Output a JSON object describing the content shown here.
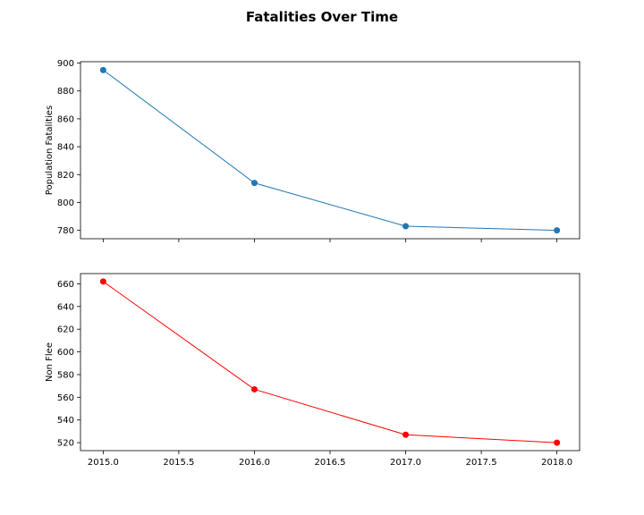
{
  "figure": {
    "title": "Fatalities Over Time"
  },
  "chart_data": [
    {
      "type": "line",
      "title": "",
      "xlabel": "",
      "ylabel": "Population Fatalities",
      "x": [
        2015.0,
        2016.0,
        2017.0,
        2018.0
      ],
      "series": [
        {
          "values": [
            895,
            814,
            783,
            780
          ],
          "color": "#1f77b4",
          "marker": "circle"
        }
      ],
      "xlim": [
        2014.85,
        2018.15
      ],
      "ylim": [
        774,
        901
      ],
      "yticks": [
        780,
        800,
        820,
        840,
        860,
        880,
        900
      ],
      "xticks": [
        2015.0,
        2015.5,
        2016.0,
        2016.5,
        2017.0,
        2017.5,
        2018.0
      ],
      "xtick_labels_visible": false,
      "grid": false
    },
    {
      "type": "line",
      "title": "",
      "xlabel": "",
      "ylabel": "Non Flee",
      "x": [
        2015.0,
        2016.0,
        2017.0,
        2018.0
      ],
      "series": [
        {
          "values": [
            662,
            567,
            527,
            520
          ],
          "color": "#ff0000",
          "marker": "circle"
        }
      ],
      "xlim": [
        2014.85,
        2018.15
      ],
      "ylim": [
        513,
        669
      ],
      "yticks": [
        520,
        540,
        560,
        580,
        600,
        620,
        640,
        660
      ],
      "xticks": [
        2015.0,
        2015.5,
        2016.0,
        2016.5,
        2017.0,
        2017.5,
        2018.0
      ],
      "xtick_labels": [
        "2015.0",
        "2015.5",
        "2016.0",
        "2016.5",
        "2017.0",
        "2017.5",
        "2018.0"
      ],
      "xtick_labels_visible": true,
      "grid": false
    }
  ]
}
